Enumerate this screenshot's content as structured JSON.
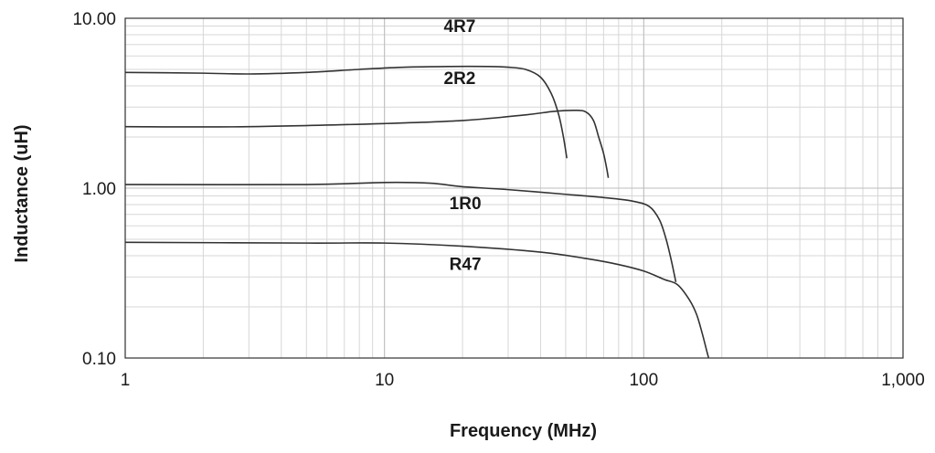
{
  "chart_data": {
    "type": "line",
    "title": "",
    "xlabel": "Frequency (MHz)",
    "ylabel": "Inductance (uH)",
    "x_scale": "log",
    "y_scale": "log",
    "xlim": [
      1,
      1000
    ],
    "ylim": [
      0.1,
      10
    ],
    "x_ticks": [
      {
        "value": 1,
        "label": "1"
      },
      {
        "value": 10,
        "label": "10"
      },
      {
        "value": 100,
        "label": "100"
      },
      {
        "value": 1000,
        "label": "1,000"
      }
    ],
    "y_ticks": [
      {
        "value": 0.1,
        "label": "0.10"
      },
      {
        "value": 1,
        "label": "1.00"
      },
      {
        "value": 10,
        "label": "10.00"
      }
    ],
    "grid": true,
    "legend": "none",
    "series": [
      {
        "name": "4R7",
        "label_at": {
          "x": 19.5,
          "y": 8.3
        },
        "points": [
          [
            1,
            4.8
          ],
          [
            2,
            4.75
          ],
          [
            3,
            4.7
          ],
          [
            5,
            4.8
          ],
          [
            8,
            5.0
          ],
          [
            12,
            5.15
          ],
          [
            18,
            5.2
          ],
          [
            25,
            5.2
          ],
          [
            30,
            5.15
          ],
          [
            35,
            5.0
          ],
          [
            40,
            4.5
          ],
          [
            44,
            3.6
          ],
          [
            47,
            2.7
          ],
          [
            49,
            2.0
          ],
          [
            50.5,
            1.5
          ]
        ]
      },
      {
        "name": "2R2",
        "label_at": {
          "x": 19.5,
          "y": 4.1
        },
        "points": [
          [
            1,
            2.3
          ],
          [
            3,
            2.3
          ],
          [
            10,
            2.4
          ],
          [
            20,
            2.5
          ],
          [
            35,
            2.7
          ],
          [
            45,
            2.83
          ],
          [
            55,
            2.87
          ],
          [
            60,
            2.8
          ],
          [
            64,
            2.5
          ],
          [
            67,
            2.0
          ],
          [
            70,
            1.6
          ],
          [
            72,
            1.3
          ],
          [
            73,
            1.15
          ]
        ]
      },
      {
        "name": "1R0",
        "label_at": {
          "x": 20.5,
          "y": 0.75
        },
        "points": [
          [
            1,
            1.05
          ],
          [
            5,
            1.05
          ],
          [
            10,
            1.08
          ],
          [
            15,
            1.07
          ],
          [
            20,
            1.02
          ],
          [
            30,
            0.98
          ],
          [
            50,
            0.92
          ],
          [
            70,
            0.88
          ],
          [
            90,
            0.84
          ],
          [
            105,
            0.78
          ],
          [
            115,
            0.65
          ],
          [
            122,
            0.5
          ],
          [
            128,
            0.37
          ],
          [
            133,
            0.28
          ]
        ]
      },
      {
        "name": "R47",
        "label_at": {
          "x": 20.5,
          "y": 0.33
        },
        "points": [
          [
            1,
            0.48
          ],
          [
            5,
            0.475
          ],
          [
            10,
            0.475
          ],
          [
            20,
            0.455
          ],
          [
            40,
            0.42
          ],
          [
            60,
            0.385
          ],
          [
            80,
            0.355
          ],
          [
            100,
            0.325
          ],
          [
            120,
            0.29
          ],
          [
            135,
            0.27
          ],
          [
            150,
            0.22
          ],
          [
            160,
            0.18
          ],
          [
            168,
            0.14
          ],
          [
            175,
            0.11
          ],
          [
            178,
            0.1
          ]
        ]
      }
    ]
  }
}
